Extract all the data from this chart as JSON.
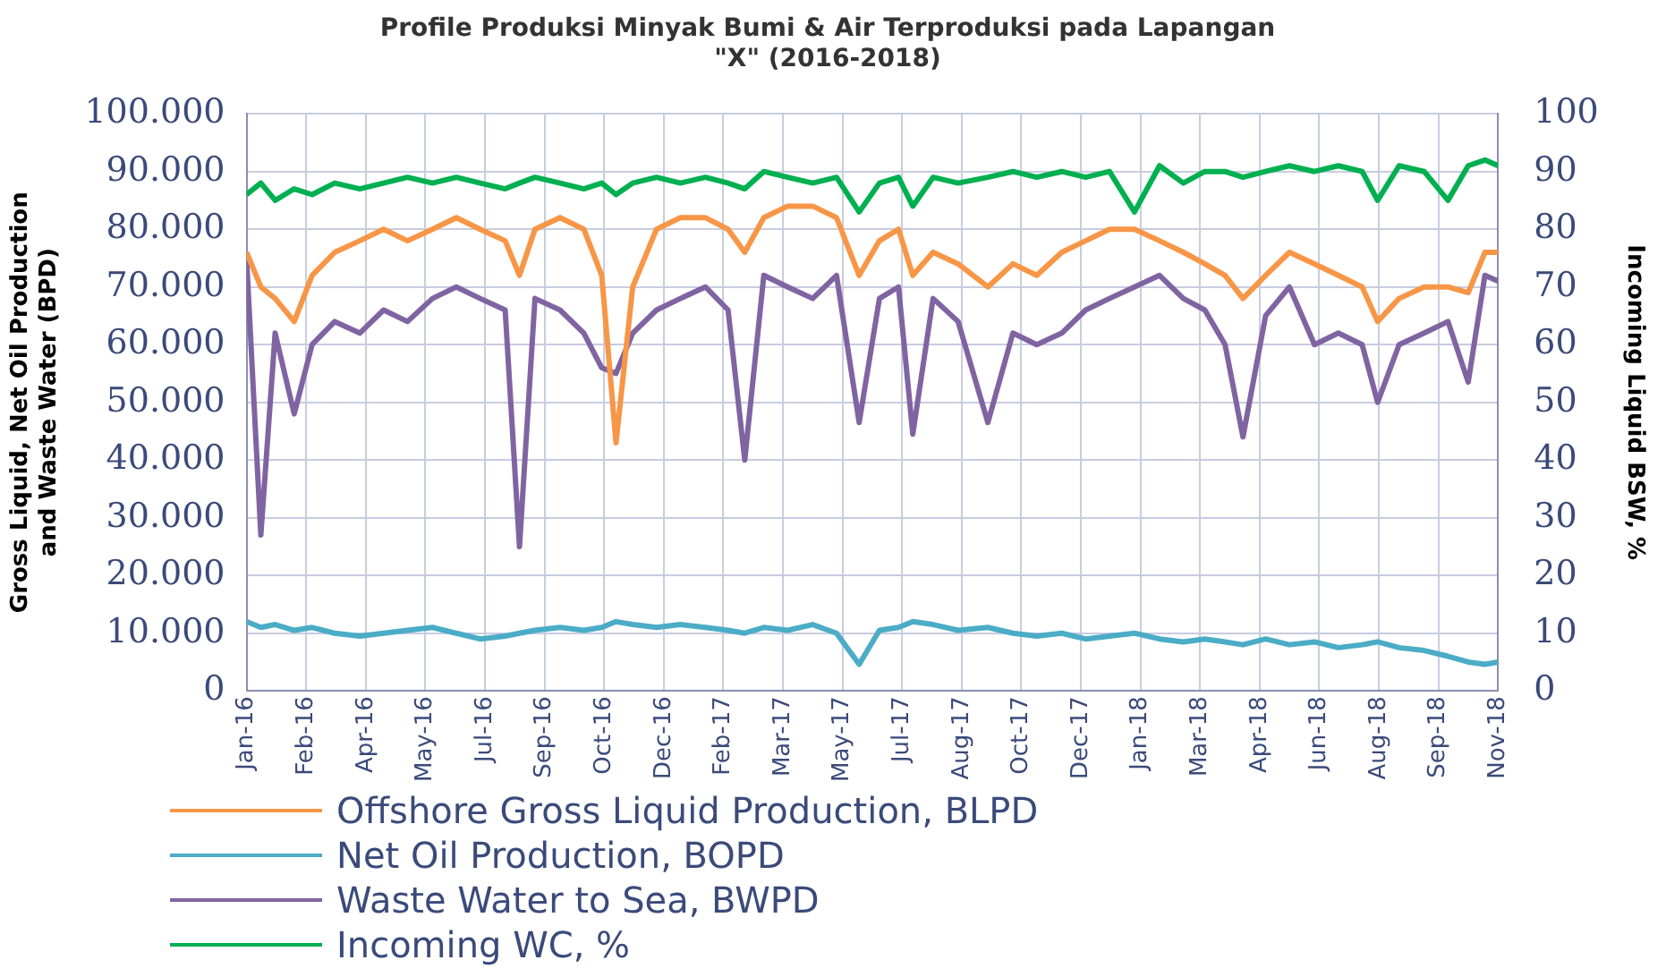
{
  "chart_data": {
    "type": "line",
    "title": "Profile Produksi Minyak Bumi & Air Terproduksi pada Lapangan \"X\" (2016-2018)",
    "ylabel": "Gross Liquid, Net Oil Production and Waste Water (BPD)",
    "y2label": "Incoming Liquid BSW, %",
    "x": [
      "2016-01-01",
      "2016-01-13",
      "2016-01-25",
      "2016-02-10",
      "2016-02-25",
      "2016-03-15",
      "2016-04-05",
      "2016-04-25",
      "2016-05-15",
      "2016-06-05",
      "2016-06-25",
      "2016-07-15",
      "2016-08-05",
      "2016-08-17",
      "2016-08-30",
      "2016-09-20",
      "2016-10-10",
      "2016-10-25",
      "2016-11-06",
      "2016-11-20",
      "2016-12-10",
      "2016-12-30",
      "2017-01-20",
      "2017-02-08",
      "2017-02-22",
      "2017-03-10",
      "2017-03-30",
      "2017-04-20",
      "2017-05-10",
      "2017-05-29",
      "2017-06-15",
      "2017-07-01",
      "2017-07-13",
      "2017-07-30",
      "2017-08-20",
      "2017-09-14",
      "2017-10-05",
      "2017-10-25",
      "2017-11-15",
      "2017-12-05",
      "2017-12-25",
      "2018-01-15",
      "2018-02-05",
      "2018-02-25",
      "2018-03-15",
      "2018-04-01",
      "2018-04-16",
      "2018-05-05",
      "2018-05-25",
      "2018-06-15",
      "2018-07-05",
      "2018-07-25",
      "2018-08-07",
      "2018-08-25",
      "2018-09-15",
      "2018-10-05",
      "2018-10-22",
      "2018-11-05",
      "2018-11-16"
    ],
    "series": [
      {
        "name": "Offshore Gross Liquid Production, BLPD",
        "color": "#f79646",
        "values": [
          76000,
          70000,
          68000,
          64000,
          72000,
          76000,
          78000,
          80000,
          78000,
          80000,
          82000,
          80000,
          78000,
          72000,
          80000,
          82000,
          80000,
          72000,
          43000,
          70000,
          80000,
          82000,
          82000,
          80000,
          76000,
          82000,
          84000,
          84000,
          82000,
          72000,
          78000,
          80000,
          72000,
          76000,
          74000,
          70000,
          74000,
          72000,
          76000,
          78000,
          80000,
          80000,
          78000,
          76000,
          74000,
          72000,
          68000,
          72000,
          76000,
          74000,
          72000,
          70000,
          64000,
          68000,
          70000,
          70000,
          69000,
          76000,
          76000
        ]
      },
      {
        "name": "Net Oil Production, BOPD",
        "color": "#4bacc6",
        "values": [
          12000,
          11000,
          11500,
          10500,
          11000,
          10000,
          9500,
          10000,
          10500,
          11000,
          10000,
          9000,
          9500,
          10000,
          10500,
          11000,
          10500,
          11000,
          12000,
          11500,
          11000,
          11500,
          11000,
          10500,
          10000,
          11000,
          10500,
          11500,
          10000,
          4600,
          10500,
          11000,
          12000,
          11500,
          10500,
          11000,
          10000,
          9500,
          10000,
          9000,
          9500,
          10000,
          9000,
          8500,
          9000,
          8500,
          8000,
          9000,
          8000,
          8500,
          7500,
          8000,
          8500,
          7500,
          7000,
          6000,
          5000,
          4600,
          5000
        ]
      },
      {
        "name": "Waste Water to Sea, BWPD",
        "color": "#8064a2",
        "values": [
          75000,
          27000,
          62000,
          48000,
          60000,
          64000,
          62000,
          66000,
          64000,
          68000,
          70000,
          68000,
          66000,
          25000,
          68000,
          66000,
          62000,
          56000,
          55000,
          62000,
          66000,
          68000,
          70000,
          66000,
          40000,
          72000,
          70000,
          68000,
          72000,
          46500,
          68000,
          70000,
          44500,
          68000,
          64000,
          46500,
          62000,
          60000,
          62000,
          66000,
          68000,
          70000,
          72000,
          68000,
          66000,
          60000,
          44000,
          65000,
          70000,
          60000,
          62000,
          60000,
          50000,
          60000,
          62000,
          64000,
          53500,
          72000,
          71000
        ]
      },
      {
        "name": "Incoming WC, %",
        "color": "#00b050",
        "axis": "y2",
        "values": [
          86,
          88,
          85,
          87,
          86,
          88,
          87,
          88,
          89,
          88,
          89,
          88,
          87,
          88,
          89,
          88,
          87,
          88,
          86,
          88,
          89,
          88,
          89,
          88,
          87,
          90,
          89,
          88,
          89,
          83,
          88,
          89,
          84,
          89,
          88,
          89,
          90,
          89,
          90,
          89,
          90,
          83,
          91,
          88,
          90,
          90,
          89,
          90,
          91,
          90,
          91,
          90,
          85,
          91,
          90,
          85,
          91,
          92,
          91
        ]
      }
    ],
    "xlim": [
      "2016-01-01",
      "2018-11-16"
    ],
    "xticks": [
      {
        "value": "2016-01-01",
        "label": "Jan-16"
      },
      {
        "value": "2016-02-20",
        "label": "Feb-16"
      },
      {
        "value": "2016-04-10",
        "label": "Apr-16"
      },
      {
        "value": "2016-05-30",
        "label": "May-16"
      },
      {
        "value": "2016-07-19",
        "label": "Jul-16"
      },
      {
        "value": "2016-09-07",
        "label": "Sep-16"
      },
      {
        "value": "2016-10-27",
        "label": "Oct-16"
      },
      {
        "value": "2016-12-16",
        "label": "Dec-16"
      },
      {
        "value": "2017-02-04",
        "label": "Feb-17"
      },
      {
        "value": "2017-03-26",
        "label": "Mar-17"
      },
      {
        "value": "2017-05-15",
        "label": "May-17"
      },
      {
        "value": "2017-07-04",
        "label": "Jul-17"
      },
      {
        "value": "2017-08-23",
        "label": "Aug-17"
      },
      {
        "value": "2017-10-12",
        "label": "Oct-17"
      },
      {
        "value": "2017-12-01",
        "label": "Dec-17"
      },
      {
        "value": "2018-01-20",
        "label": "Jan-18"
      },
      {
        "value": "2018-03-11",
        "label": "Mar-18"
      },
      {
        "value": "2018-04-30",
        "label": "Apr-18"
      },
      {
        "value": "2018-06-19",
        "label": "Jun-18"
      },
      {
        "value": "2018-08-08",
        "label": "Aug-18"
      },
      {
        "value": "2018-09-27",
        "label": "Sep-18"
      },
      {
        "value": "2018-11-16",
        "label": "Nov-18"
      }
    ],
    "ylim": [
      0,
      100000
    ],
    "yticks": [
      0,
      {
        "value": 10000,
        "label": "10.000"
      },
      {
        "value": 20000,
        "label": "20.000"
      },
      {
        "value": 30000,
        "label": "30.000"
      },
      {
        "value": 40000,
        "label": "40.000"
      },
      {
        "value": 50000,
        "label": "50.000"
      },
      {
        "value": 60000,
        "label": "60.000"
      },
      {
        "value": 70000,
        "label": "70.000"
      },
      {
        "value": 80000,
        "label": "80.000"
      },
      {
        "value": 90000,
        "label": "90.000"
      },
      {
        "value": 100000,
        "label": "100.000"
      }
    ],
    "y2lim": [
      0,
      100
    ],
    "y2ticks": [
      0,
      10,
      20,
      30,
      40,
      50,
      60,
      70,
      80,
      90,
      100
    ],
    "grid": true,
    "legend": "bottom"
  }
}
